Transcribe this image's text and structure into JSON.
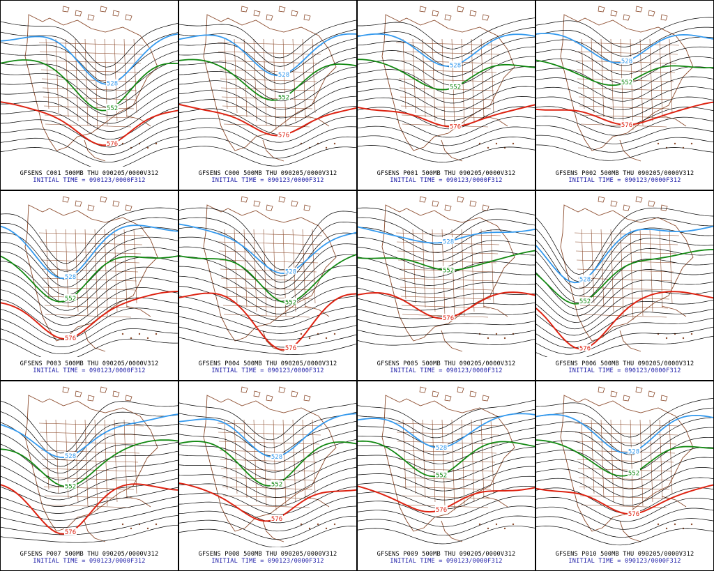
{
  "panels": [
    {
      "title": "GFSENS C001 500MB THU 090205/0000V312",
      "init": "INITIAL TIME = 090123/0000F312",
      "labels": {
        "blue": "528",
        "green": "552",
        "red": "576"
      }
    },
    {
      "title": "GFSENS C000 500MB THU 090205/0000V312",
      "init": "INITIAL TIME = 090123/0000F312",
      "labels": {
        "blue": "528",
        "green": "552",
        "red": "576"
      }
    },
    {
      "title": "GFSENS P001 500MB THU 090205/0000V312",
      "init": "INITIAL TIME = 090123/0000F312",
      "labels": {
        "blue": "528",
        "green": "552",
        "red": "576"
      }
    },
    {
      "title": "GFSENS P002 500MB THU 090205/0000V312",
      "init": "INITIAL TIME = 090123/0000F312",
      "labels": {
        "blue": "528",
        "green": "552",
        "red": "576"
      }
    },
    {
      "title": "GFSENS P003 500MB THU 090205/0000V312",
      "init": "INITIAL TIME = 090123/0000F312",
      "labels": {
        "blue": "528",
        "green": "552",
        "red": "576"
      }
    },
    {
      "title": "GFSENS P004 500MB THU 090205/0000V312",
      "init": "INITIAL TIME = 090123/0000F312",
      "labels": {
        "blue": "528",
        "green": "552",
        "red": "576"
      }
    },
    {
      "title": "GFSENS P005 500MB THU 090205/0000V312",
      "init": "INITIAL TIME = 090123/0000F312",
      "labels": {
        "blue": "528",
        "green": "552",
        "red": "576"
      }
    },
    {
      "title": "GFSENS P006 500MB THU 090205/0000V312",
      "init": "INITIAL TIME = 090123/0000F312",
      "labels": {
        "blue": "528",
        "green": "552",
        "red": "576"
      }
    },
    {
      "title": "GFSENS P007 500MB THU 090205/0000V312",
      "init": "INITIAL TIME = 090123/0000F312",
      "labels": {
        "blue": "528",
        "green": "552",
        "red": "576"
      }
    },
    {
      "title": "GFSENS P008 500MB THU 090205/0000V312",
      "init": "INITIAL TIME = 090123/0000F312",
      "labels": {
        "blue": "528",
        "green": "552",
        "red": "576"
      }
    },
    {
      "title": "GFSENS P009 500MB THU 090205/0000V312",
      "init": "INITIAL TIME = 090123/0000F312",
      "labels": {
        "blue": "528",
        "green": "552",
        "red": "576"
      }
    },
    {
      "title": "GFSENS P010 500MB THU 090205/0000V312",
      "init": "INITIAL TIME = 090123/0000F312",
      "labels": {
        "blue": "528",
        "green": "552",
        "red": "576"
      }
    }
  ],
  "colors": {
    "contour": "#000000",
    "blue": "#3399ee",
    "green": "#118811",
    "red": "#dd2211",
    "map": "#8b4a2b",
    "title": "#000000",
    "init": "#1a1aa6"
  }
}
